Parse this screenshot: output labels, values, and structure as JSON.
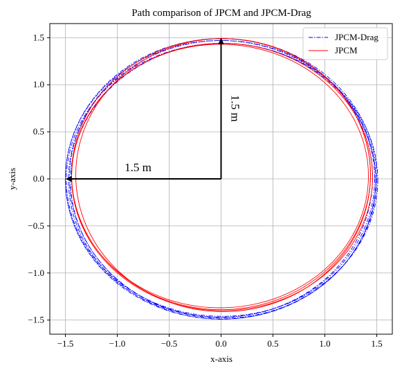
{
  "chart_data": {
    "type": "line",
    "title": "Path comparison of JPCM and JPCM-Drag",
    "xlabel": "x-axis",
    "ylabel": "y-axis",
    "xlim": [
      -1.65,
      1.65
    ],
    "ylim": [
      -1.65,
      1.65
    ],
    "xticks": [
      -1.5,
      -1.0,
      -0.5,
      0.0,
      0.5,
      1.0,
      1.5
    ],
    "yticks": [
      -1.5,
      -1.0,
      -0.5,
      0.0,
      0.5,
      1.0,
      1.5
    ],
    "xtick_labels": [
      "−1.5",
      "−1.0",
      "−0.5",
      "0.0",
      "0.5",
      "1.0",
      "1.5"
    ],
    "ytick_labels": [
      "−1.5",
      "−1.0",
      "−0.5",
      "0.0",
      "0.5",
      "1.0",
      "1.5"
    ],
    "grid": true,
    "legend": "top-right",
    "series": [
      {
        "name": "JPCM-Drag",
        "color": "#0000ff",
        "style": "dashdot",
        "loops": [
          {
            "cx": 0.0,
            "cy": 0.0,
            "rx": 1.5,
            "ry": 1.49
          },
          {
            "cx": 0.01,
            "cy": -0.01,
            "rx": 1.48,
            "ry": 1.48
          },
          {
            "cx": -0.01,
            "cy": 0.0,
            "rx": 1.49,
            "ry": 1.47
          },
          {
            "cx": 0.02,
            "cy": -0.02,
            "rx": 1.47,
            "ry": 1.46
          },
          {
            "cx": 0.0,
            "cy": 0.01,
            "rx": 1.46,
            "ry": 1.48
          },
          {
            "cx": 0.01,
            "cy": -0.01,
            "rx": 1.5,
            "ry": 1.45
          }
        ]
      },
      {
        "name": "JPCM",
        "color": "#ff0000",
        "style": "solid",
        "loops": [
          {
            "cx": 0.0,
            "cy": 0.05,
            "rx": 1.44,
            "ry": 1.44
          },
          {
            "cx": 0.01,
            "cy": 0.02,
            "rx": 1.45,
            "ry": 1.42
          },
          {
            "cx": -0.01,
            "cy": 0.03,
            "rx": 1.43,
            "ry": 1.4
          },
          {
            "cx": 0.02,
            "cy": 0.04,
            "rx": 1.42,
            "ry": 1.45
          }
        ]
      }
    ],
    "annotations": [
      {
        "text": "1.5 m",
        "x": -0.8,
        "y": 0.08,
        "rotation": 0
      },
      {
        "text": "1.5 m",
        "x": 0.1,
        "y": 0.75,
        "rotation": 90
      }
    ],
    "arrows": [
      {
        "from": [
          0,
          0
        ],
        "to": [
          -1.5,
          0
        ]
      },
      {
        "from": [
          0,
          0
        ],
        "to": [
          0,
          1.5
        ]
      }
    ]
  }
}
